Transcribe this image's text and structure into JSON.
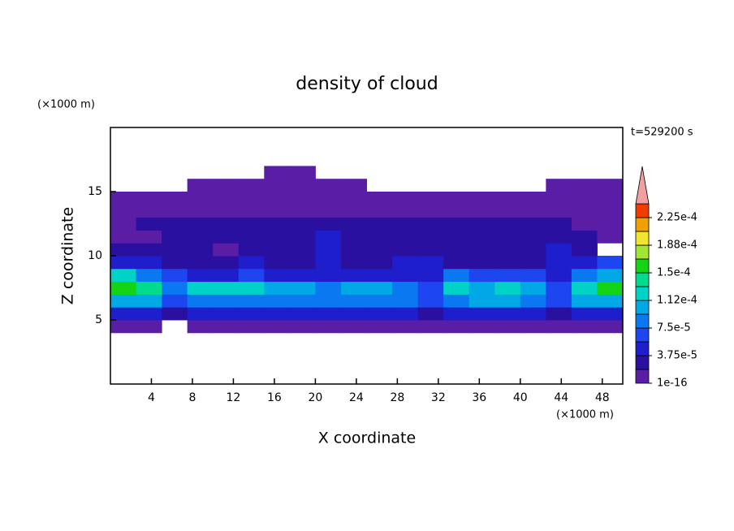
{
  "chart_data": {
    "type": "contour",
    "title": "density of cloud",
    "xlabel": "X coordinate",
    "ylabel": "Z coordinate",
    "x_unit": "(×1000 m)",
    "y_unit": "(×1000 m)",
    "time_label": "t=529200 s",
    "xlim": [
      0,
      50
    ],
    "ylim": [
      0,
      20
    ],
    "xticks": [
      4,
      8,
      12,
      16,
      20,
      24,
      28,
      32,
      36,
      40,
      44,
      48
    ],
    "yticks": [
      5,
      10,
      15
    ],
    "x": [
      1.25,
      3.75,
      6.25,
      8.75,
      11.25,
      13.75,
      16.25,
      18.75,
      21.25,
      23.75,
      26.25,
      28.75,
      31.25,
      33.75,
      36.25,
      38.75,
      41.25,
      43.75,
      46.25,
      48.75
    ],
    "y": [
      4.5,
      5.5,
      6.5,
      7.5,
      8.5,
      9.5,
      10.5,
      11.5,
      12.5,
      13.5,
      14.5,
      15.5,
      16.5
    ],
    "z": [
      [
        1e-05,
        1e-05,
        0,
        1e-05,
        1e-05,
        1e-05,
        1e-05,
        1e-05,
        1e-05,
        1e-05,
        1e-05,
        1e-05,
        1e-05,
        1e-05,
        1e-05,
        1e-05,
        1e-05,
        1e-05,
        1e-05,
        1e-05
      ],
      [
        5e-05,
        5e-05,
        3e-05,
        4e-05,
        4e-05,
        4e-05,
        4e-05,
        4e-05,
        4e-05,
        4e-05,
        4e-05,
        4e-05,
        3e-05,
        4e-05,
        4e-05,
        4e-05,
        4e-05,
        3e-05,
        4e-05,
        5e-05
      ],
      [
        0.0001,
        0.0001,
        6e-05,
        9e-05,
        9e-05,
        9e-05,
        9e-05,
        9e-05,
        9e-05,
        9e-05,
        9e-05,
        8e-05,
        6e-05,
        9e-05,
        0.0001,
        0.0001,
        9e-05,
        6e-05,
        0.0001,
        0.00011
      ],
      [
        0.00016,
        0.00014,
        8e-05,
        0.00012,
        0.00013,
        0.00012,
        0.00011,
        0.00011,
        9e-05,
        0.00011,
        0.0001,
        8e-05,
        7e-05,
        0.00012,
        0.0001,
        0.00013,
        0.00011,
        7e-05,
        0.00013,
        0.00016
      ],
      [
        0.00012,
        9e-05,
        6e-05,
        5e-05,
        5e-05,
        6e-05,
        5e-05,
        5e-05,
        5e-05,
        4e-05,
        4e-05,
        4e-05,
        5e-05,
        8e-05,
        7e-05,
        6e-05,
        6e-05,
        5e-05,
        8e-05,
        0.00011
      ],
      [
        5e-05,
        4e-05,
        3e-05,
        3e-05,
        3e-05,
        4e-05,
        3e-05,
        3e-05,
        4e-05,
        3e-05,
        3e-05,
        4e-05,
        4e-05,
        3e-05,
        3e-05,
        3e-05,
        3e-05,
        4e-05,
        4e-05,
        6e-05
      ],
      [
        2e-05,
        2e-05,
        2e-05,
        2e-05,
        1e-05,
        3e-05,
        2e-05,
        3e-05,
        5e-05,
        3e-05,
        2e-05,
        3e-05,
        3e-05,
        2e-05,
        2e-05,
        2e-05,
        3e-05,
        4e-05,
        2e-05,
        0
      ],
      [
        1e-05,
        1e-05,
        2e-05,
        2e-05,
        2e-05,
        3e-05,
        2e-05,
        2e-05,
        4e-05,
        3e-05,
        2e-05,
        3e-05,
        3e-05,
        2e-05,
        2e-05,
        3e-05,
        2e-05,
        3e-05,
        2e-05,
        1e-05
      ],
      [
        1e-05,
        2e-05,
        2e-05,
        2e-05,
        2e-05,
        2e-05,
        2e-05,
        2e-05,
        2e-05,
        2e-05,
        2e-05,
        2e-05,
        2e-05,
        2e-05,
        2e-05,
        2e-05,
        2e-05,
        2e-05,
        1e-05,
        1e-05
      ],
      [
        1e-05,
        1e-05,
        1e-05,
        1e-05,
        1e-05,
        1e-05,
        1e-05,
        1e-05,
        1e-05,
        1e-05,
        1e-05,
        1e-05,
        1e-05,
        1e-05,
        1e-05,
        1e-05,
        1e-05,
        1e-05,
        1e-05,
        1e-05
      ],
      [
        1e-05,
        1e-05,
        1e-05,
        1e-05,
        1e-05,
        1e-05,
        1e-05,
        1e-05,
        1e-05,
        1e-05,
        1e-05,
        1e-05,
        1e-05,
        1e-05,
        1e-05,
        1e-05,
        1e-05,
        1e-05,
        1e-05,
        1e-05
      ],
      [
        0,
        0,
        0,
        1e-05,
        1e-05,
        1e-05,
        1e-05,
        1e-05,
        1e-05,
        1e-05,
        0,
        0,
        0,
        0,
        0,
        0,
        0,
        1e-05,
        1e-05,
        1e-05
      ],
      [
        0,
        0,
        0,
        0,
        0,
        0,
        1e-05,
        1e-05,
        0,
        0,
        0,
        0,
        0,
        0,
        0,
        0,
        0,
        0,
        0,
        0
      ]
    ],
    "levels": [
      1e-16,
      1.875e-05,
      3.75e-05,
      5.625e-05,
      7.5e-05,
      9.375e-05,
      0.0001125,
      0.00013125,
      0.00015,
      0.00016875,
      0.0001875,
      0.00020625,
      0.000225,
      0.00024375
    ],
    "colors": [
      "#5a1ea6",
      "#2a10a0",
      "#1e1ecc",
      "#1e46f0",
      "#0a78f0",
      "#00a8e6",
      "#00d2c8",
      "#00dc8c",
      "#14d214",
      "#a0e632",
      "#f0e632",
      "#f0a000",
      "#f03c00"
    ],
    "over_color": "#f0a0a0",
    "colorbar_ticks": [
      {
        "value": 1e-16,
        "label": "1e-16"
      },
      {
        "value": 3.75e-05,
        "label": "3.75e-5"
      },
      {
        "value": 7.5e-05,
        "label": "7.5e-5"
      },
      {
        "value": 0.0001125,
        "label": "1.12e-4"
      },
      {
        "value": 0.00015,
        "label": "1.5e-4"
      },
      {
        "value": 0.0001875,
        "label": "1.88e-4"
      },
      {
        "value": 0.000225,
        "label": "2.25e-4"
      }
    ]
  }
}
